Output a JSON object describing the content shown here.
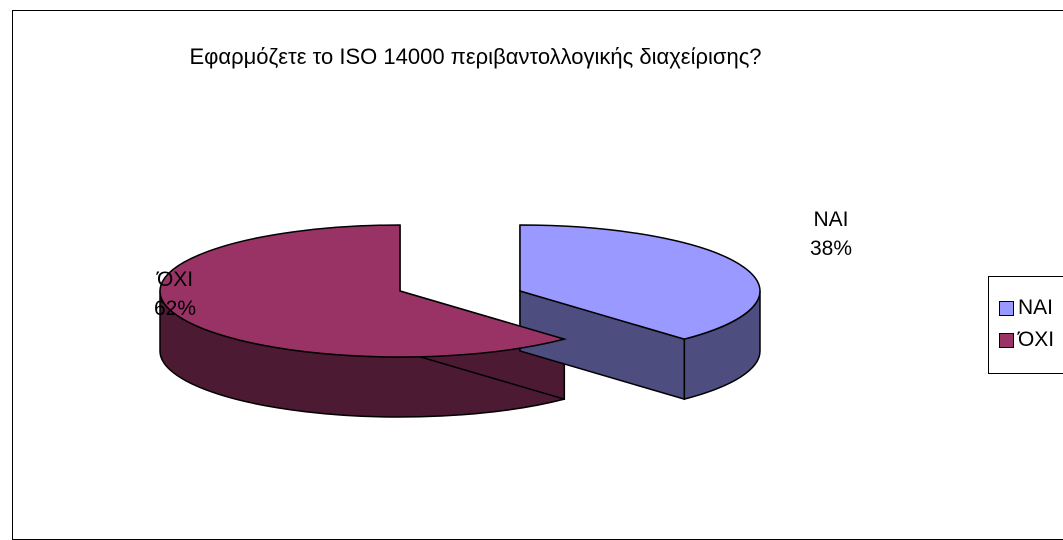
{
  "chart_data": {
    "type": "pie",
    "title": "Εφαρμόζετε το ISO 14000 περιβαντολλογικής διαχείρισης?",
    "slices": [
      {
        "name": "NAI",
        "value": 38,
        "label": "38%",
        "color": "#9999ff",
        "side_color": "#4d4d80"
      },
      {
        "name": "ΌΧΙ",
        "value": 62,
        "label": "62%",
        "color": "#993366",
        "side_color": "#4d1a33"
      }
    ],
    "three_d": true,
    "exploded": true,
    "legend_position": "right"
  }
}
